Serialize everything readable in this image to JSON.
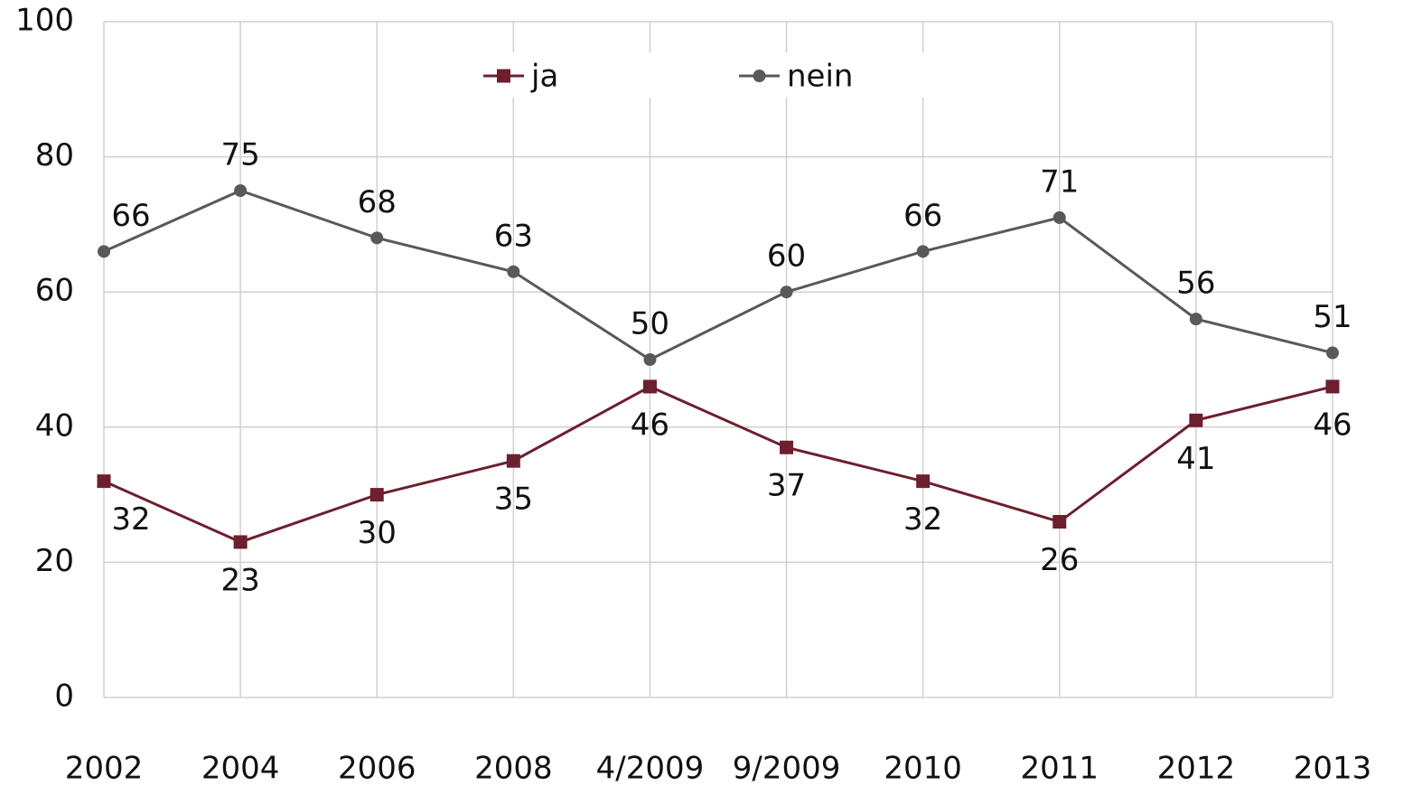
{
  "chart_data": {
    "type": "line",
    "categories": [
      "2002",
      "2004",
      "2006",
      "2008",
      "4/2009",
      "9/2009",
      "2010",
      "2011",
      "2012",
      "2013"
    ],
    "series": [
      {
        "name": "ja",
        "color": "#6d1f2e",
        "marker": "square",
        "values": [
          32,
          23,
          30,
          35,
          46,
          37,
          32,
          26,
          41,
          46
        ]
      },
      {
        "name": "nein",
        "color": "#595959",
        "marker": "circle",
        "values": [
          66,
          75,
          68,
          63,
          50,
          60,
          66,
          71,
          56,
          51
        ]
      }
    ],
    "ylim": [
      0,
      100
    ],
    "yticks": [
      0,
      20,
      40,
      60,
      80,
      100
    ],
    "grid": true,
    "legend": "top"
  }
}
